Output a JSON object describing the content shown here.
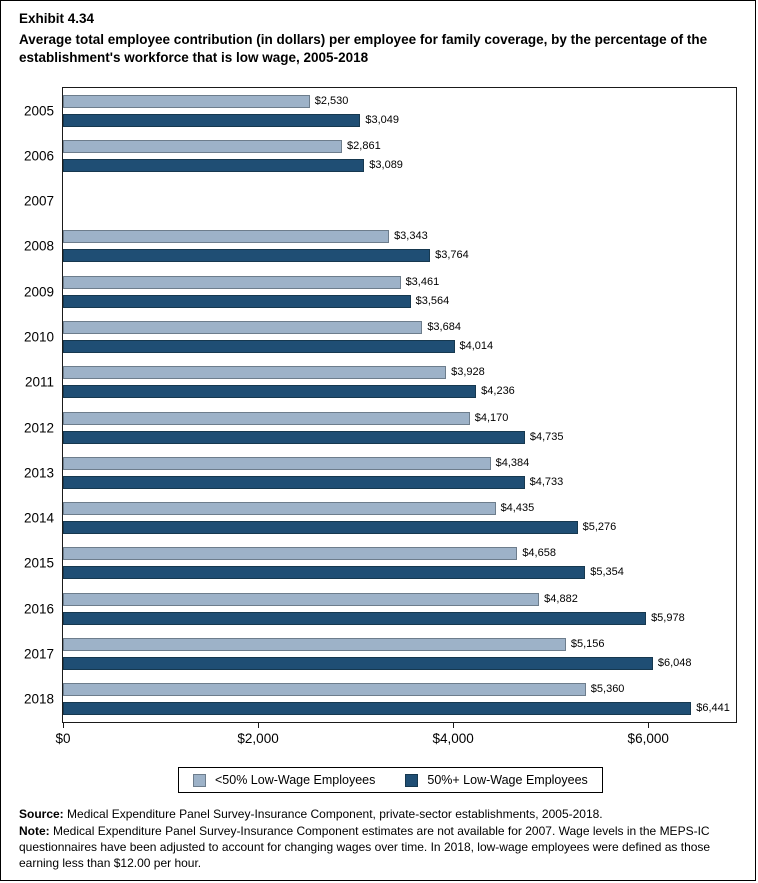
{
  "header": {
    "exhibit_label": "Exhibit 4.34",
    "title": "Average total employee contribution (in dollars) per employee for family coverage, by the percentage of the establishment's workforce that is low wage, 2005-2018"
  },
  "chart_data": {
    "type": "bar",
    "orientation": "horizontal",
    "title": "Average total employee contribution (in dollars) per employee for family coverage, by the percentage of the establishment's workforce that is low wage, 2005-2018",
    "categories": [
      "2005",
      "2006",
      "2007",
      "2008",
      "2009",
      "2010",
      "2011",
      "2012",
      "2013",
      "2014",
      "2015",
      "2016",
      "2017",
      "2018"
    ],
    "series": [
      {
        "name": "<50% Low-Wage Employees",
        "color": "#9DB2C8",
        "border_color": "#6D7D8C",
        "values": [
          2530,
          2861,
          null,
          3343,
          3461,
          3684,
          3928,
          4170,
          4384,
          4435,
          4658,
          4882,
          5156,
          5360
        ],
        "value_labels": [
          "$2,530",
          "$2,861",
          "",
          "$3,343",
          "$3,461",
          "$3,684",
          "$3,928",
          "$4,170",
          "$4,384",
          "$4,435",
          "$4,658",
          "$4,882",
          "$5,156",
          "$5,360"
        ]
      },
      {
        "name": "50%+ Low-Wage Employees",
        "color": "#1F4E74",
        "border_color": "#16384F",
        "values": [
          3049,
          3089,
          null,
          3764,
          3564,
          4014,
          4236,
          4735,
          4733,
          5276,
          5354,
          5978,
          6048,
          6441
        ],
        "value_labels": [
          "$3,049",
          "$3,089",
          "",
          "$3,764",
          "$3,564",
          "$4,014",
          "$4,236",
          "$4,735",
          "$4,733",
          "$5,276",
          "$5,354",
          "$5,978",
          "$6,048",
          "$6,441"
        ]
      }
    ],
    "xlim": [
      0,
      6900
    ],
    "x_ticks": [
      {
        "value": 0,
        "label": "$0"
      },
      {
        "value": 2000,
        "label": "$2,000"
      },
      {
        "value": 4000,
        "label": "$4,000"
      },
      {
        "value": 6000,
        "label": "$6,000"
      }
    ],
    "grid": false,
    "legend_position": "bottom",
    "note": "Estimates not available for 2007"
  },
  "footer": {
    "source_label": "Source:",
    "source_text": " Medical Expenditure Panel Survey-Insurance Component, private-sector establishments, 2005-2018.",
    "note_label": "Note:",
    "note_text": " Medical Expenditure Panel Survey-Insurance Component estimates are not available for 2007. Wage levels in the MEPS-IC questionnaires have been adjusted to account for changing wages over time. In 2018, low-wage employees were defined as those earning less than $12.00 per hour."
  }
}
